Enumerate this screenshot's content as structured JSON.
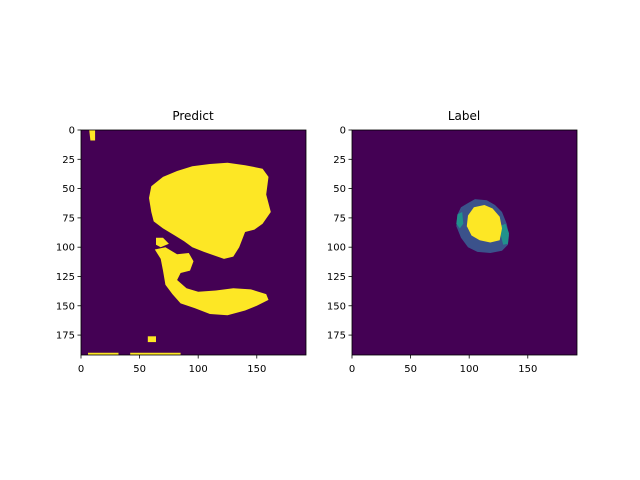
{
  "colors": {
    "background_class": "#440154",
    "mid_class": "#3b528b",
    "mid2_class": "#21918c",
    "foreground_class": "#fde725"
  },
  "chart_data": [
    {
      "type": "heatmap",
      "title": "Predict",
      "xlabel": "",
      "ylabel": "",
      "xlim": [
        0,
        192
      ],
      "ylim": [
        192,
        0
      ],
      "xticks": [
        0,
        50,
        100,
        150
      ],
      "yticks": [
        0,
        25,
        50,
        75,
        100,
        125,
        150,
        175
      ],
      "xtick_labels": [
        "0",
        "50",
        "100",
        "150"
      ],
      "ytick_labels": [
        "0",
        "25",
        "50",
        "75",
        "100",
        "125",
        "150",
        "175"
      ],
      "grid": false,
      "colormap": "viridis",
      "regions": [
        {
          "value": 1,
          "color": "#fde725",
          "points": [
            [
              60,
              48
            ],
            [
              70,
              40
            ],
            [
              82,
              35
            ],
            [
              95,
              31
            ],
            [
              110,
              29
            ],
            [
              125,
              28
            ],
            [
              140,
              30
            ],
            [
              155,
              33
            ],
            [
              160,
              40
            ],
            [
              158,
              55
            ],
            [
              162,
              70
            ],
            [
              155,
              80
            ],
            [
              148,
              85
            ],
            [
              140,
              87
            ],
            [
              135,
              100
            ],
            [
              130,
              108
            ],
            [
              122,
              110
            ],
            [
              105,
              104
            ],
            [
              95,
              100
            ],
            [
              88,
              95
            ],
            [
              80,
              90
            ],
            [
              70,
              84
            ],
            [
              62,
              78
            ],
            [
              60,
              70
            ],
            [
              58,
              58
            ]
          ]
        },
        {
          "value": 1,
          "color": "#fde725",
          "points": [
            [
              64,
              92
            ],
            [
              70,
              92
            ],
            [
              75,
              97
            ],
            [
              68,
              100
            ],
            [
              64,
              98
            ]
          ]
        },
        {
          "value": 1,
          "color": "#fde725",
          "points": [
            [
              63,
              102
            ],
            [
              72,
              100
            ],
            [
              82,
              106
            ],
            [
              92,
              105
            ],
            [
              96,
              112
            ],
            [
              93,
              120
            ],
            [
              85,
              122
            ],
            [
              82,
              128
            ],
            [
              90,
              135
            ],
            [
              100,
              138
            ],
            [
              115,
              137
            ],
            [
              130,
              135
            ],
            [
              145,
              136
            ],
            [
              158,
              140
            ],
            [
              160,
              145
            ],
            [
              150,
              150
            ],
            [
              140,
              154
            ],
            [
              125,
              158
            ],
            [
              110,
              157
            ],
            [
              97,
              152
            ],
            [
              85,
              148
            ],
            [
              78,
              140
            ],
            [
              72,
              132
            ],
            [
              70,
              120
            ],
            [
              68,
              110
            ]
          ]
        },
        {
          "value": 1,
          "color": "#fde725",
          "points": [
            [
              7,
              0
            ],
            [
              12,
              0
            ],
            [
              12,
              9
            ],
            [
              8,
              9
            ]
          ]
        },
        {
          "value": 1,
          "color": "#fde725",
          "points": [
            [
              57,
              176
            ],
            [
              64,
              176
            ],
            [
              64,
              181
            ],
            [
              57,
              181
            ]
          ]
        },
        {
          "value": 1,
          "color": "#fde725",
          "points": [
            [
              6,
              190
            ],
            [
              32,
              190
            ],
            [
              32,
              192
            ],
            [
              6,
              192
            ]
          ]
        },
        {
          "value": 1,
          "color": "#fde725",
          "points": [
            [
              42,
              190
            ],
            [
              85,
              190
            ],
            [
              85,
              192
            ],
            [
              42,
              192
            ]
          ]
        }
      ]
    },
    {
      "type": "heatmap",
      "title": "Label",
      "xlabel": "",
      "ylabel": "",
      "xlim": [
        0,
        192
      ],
      "ylim": [
        192,
        0
      ],
      "xticks": [
        0,
        50,
        100,
        150
      ],
      "yticks": [
        0,
        25,
        50,
        75,
        100,
        125,
        150,
        175
      ],
      "xtick_labels": [
        "0",
        "50",
        "100",
        "150"
      ],
      "ytick_labels": [
        "0",
        "25",
        "50",
        "75",
        "100",
        "125",
        "150",
        "175"
      ],
      "grid": false,
      "colormap": "viridis",
      "regions": [
        {
          "value": 1,
          "color": "#3b528b",
          "points": [
            [
              98,
              63
            ],
            [
              105,
              59
            ],
            [
              115,
              60
            ],
            [
              122,
              64
            ],
            [
              128,
              70
            ],
            [
              132,
              80
            ],
            [
              134,
              90
            ],
            [
              133,
              98
            ],
            [
              128,
              103
            ],
            [
              118,
              105
            ],
            [
              107,
              104
            ],
            [
              99,
              100
            ],
            [
              93,
              92
            ],
            [
              89,
              82
            ],
            [
              90,
              72
            ],
            [
              93,
              66
            ]
          ]
        },
        {
          "value": 2,
          "color": "#21918c",
          "points": [
            [
              90,
              72
            ],
            [
              94,
              70
            ],
            [
              95,
              80
            ],
            [
              92,
              84
            ],
            [
              89,
              80
            ]
          ]
        },
        {
          "value": 2,
          "color": "#21918c",
          "points": [
            [
              126,
              82
            ],
            [
              131,
              80
            ],
            [
              134,
              88
            ],
            [
              133,
              97
            ],
            [
              129,
              98
            ],
            [
              127,
              90
            ]
          ]
        },
        {
          "value": 3,
          "color": "#fde725",
          "points": [
            [
              104,
              66
            ],
            [
              113,
              64
            ],
            [
              120,
              67
            ],
            [
              126,
              74
            ],
            [
              128,
              84
            ],
            [
              126,
              94
            ],
            [
              118,
              96
            ],
            [
              109,
              94
            ],
            [
              102,
              90
            ],
            [
              98,
              82
            ],
            [
              99,
              73
            ]
          ]
        }
      ]
    }
  ]
}
